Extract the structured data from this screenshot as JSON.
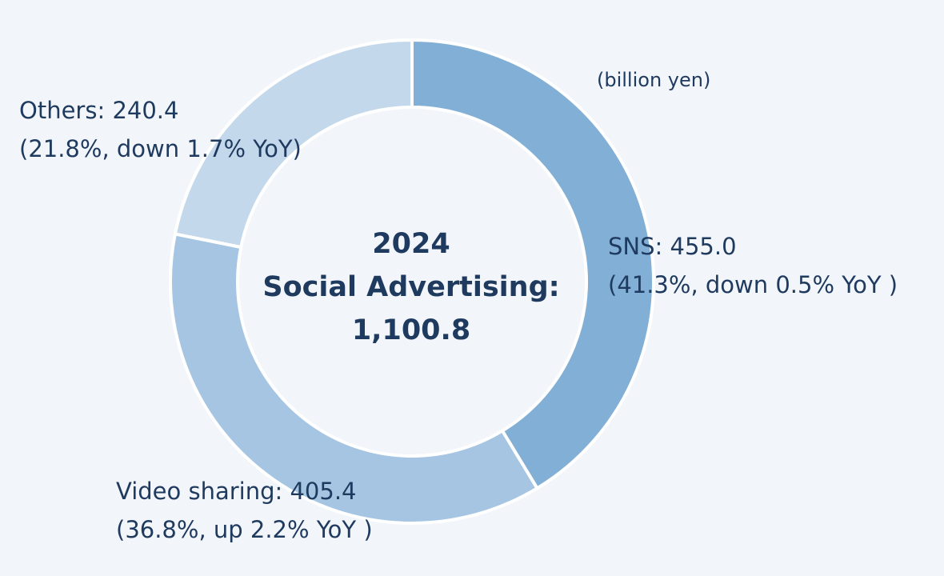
{
  "chart_data": {
    "type": "pie",
    "unit": "(billion yen)",
    "center": {
      "year": "2024",
      "title": "Social Advertising:",
      "total": "1,100.8",
      "total_value": 1100.8
    },
    "slices": [
      {
        "name": "SNS",
        "value": 455.0,
        "share_percent": 41.3,
        "label_line1": "SNS: 455.0",
        "label_line2": "(41.3%, down 0.5% YoY )",
        "color": "#82afd6"
      },
      {
        "name": "Video sharing",
        "value": 405.4,
        "share_percent": 36.8,
        "label_line1": "Video sharing: 405.4",
        "label_line2": "(36.8%, up 2.2% YoY )",
        "color": "#a5c5e3"
      },
      {
        "name": "Others",
        "value": 240.4,
        "share_percent": 21.8,
        "label_line1": "Others: 240.4",
        "label_line2": "(21.8%, down 1.7% YoY)",
        "color": "#c3d8eb"
      }
    ],
    "style": "donut",
    "start_angle_deg": 0,
    "direction": "clockwise"
  },
  "colors": {
    "background": "#f2f5f9",
    "text": "#1f3a5f",
    "separator": "#ffffff"
  }
}
